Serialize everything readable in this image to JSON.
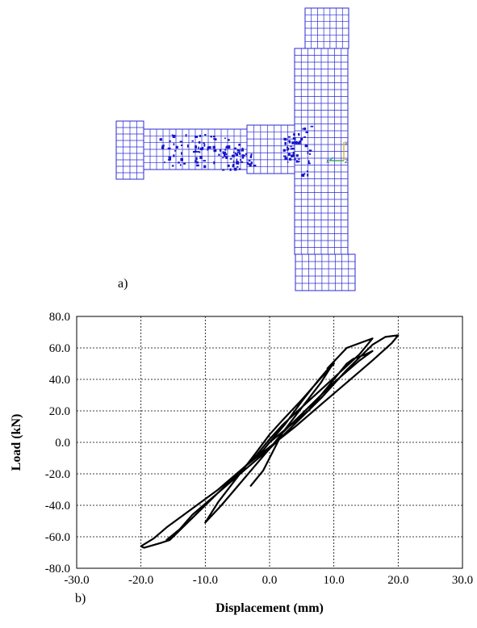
{
  "panels": {
    "a_label": "a)",
    "b_label": "b)"
  },
  "mesh": {
    "grid_color": "#2a2ad6",
    "crack_color": "#1515c8",
    "node_marker_labels": [
      "Y",
      "Z",
      "X"
    ]
  },
  "chart_data": {
    "type": "line",
    "xlabel": "Displacement (mm)",
    "ylabel": "Load (kN)",
    "xlim": [
      -30,
      30
    ],
    "ylim": [
      -80,
      80
    ],
    "x_ticks": [
      -30,
      -20,
      -10,
      0,
      10,
      20,
      30
    ],
    "y_ticks": [
      -80,
      -60,
      -40,
      -20,
      0,
      20,
      40,
      60,
      80
    ],
    "x_tick_labels": [
      "-30.0",
      "-20.0",
      "-10.0",
      "0.0",
      "10.0",
      "20.0",
      "30.0"
    ],
    "y_tick_labels": [
      "-80.0",
      "-60.0",
      "-40.0",
      "-20.0",
      "0.0",
      "20.0",
      "40.0",
      "60.0",
      "80.0"
    ],
    "grid": true,
    "line_color": "#000000",
    "series": [
      {
        "values": [
          [
            0,
            0
          ],
          [
            2.5,
            12
          ],
          [
            5,
            26
          ],
          [
            7.5,
            39
          ],
          [
            10,
            51
          ],
          [
            8,
            38
          ],
          [
            5,
            22
          ],
          [
            2,
            6
          ],
          [
            0,
            -4
          ],
          [
            -2.5,
            -16
          ],
          [
            -5,
            -28
          ],
          [
            -7.5,
            -40
          ],
          [
            -10,
            -51
          ],
          [
            -8,
            -38
          ],
          [
            -5,
            -22
          ],
          [
            -2,
            -6
          ],
          [
            0,
            5
          ],
          [
            2,
            14
          ],
          [
            5,
            27
          ],
          [
            8,
            41
          ],
          [
            10,
            50
          ],
          [
            9,
            47
          ],
          [
            12,
            60
          ],
          [
            14,
            63
          ],
          [
            16,
            66
          ],
          [
            14,
            56
          ],
          [
            10,
            41
          ],
          [
            6,
            26
          ],
          [
            2,
            11
          ],
          [
            0,
            2
          ],
          [
            -2,
            -8
          ],
          [
            -6,
            -24
          ],
          [
            -10,
            -40
          ],
          [
            -13,
            -52
          ],
          [
            -16,
            -62
          ],
          [
            -15,
            -60
          ],
          [
            -12,
            -46
          ],
          [
            -8,
            -32
          ],
          [
            -4,
            -18
          ],
          [
            0,
            -4
          ],
          [
            4,
            12
          ],
          [
            8,
            28
          ],
          [
            12,
            46
          ],
          [
            16,
            62
          ],
          [
            18,
            67
          ],
          [
            20,
            68
          ],
          [
            19,
            63
          ],
          [
            16,
            52
          ],
          [
            12,
            38
          ],
          [
            8,
            24
          ],
          [
            4,
            10
          ],
          [
            0,
            -3
          ],
          [
            -4,
            -16
          ],
          [
            -8,
            -30
          ],
          [
            -12,
            -42
          ],
          [
            -16,
            -54
          ],
          [
            -18,
            -61
          ],
          [
            -20,
            -66
          ],
          [
            -19.5,
            -67
          ],
          [
            -17,
            -64
          ],
          [
            -15.5,
            -62
          ],
          [
            -12,
            -48
          ],
          [
            -8,
            -32
          ],
          [
            -4,
            -16
          ],
          [
            -1,
            -5
          ],
          [
            0,
            0
          ],
          [
            3,
            10
          ],
          [
            6,
            20
          ],
          [
            9,
            35
          ],
          [
            11,
            45
          ],
          [
            12,
            50
          ],
          [
            13,
            53
          ],
          [
            15,
            56
          ],
          [
            16,
            58
          ],
          [
            14,
            52
          ],
          [
            10,
            38
          ],
          [
            6,
            22
          ],
          [
            2,
            6
          ],
          [
            -1,
            -18
          ],
          [
            -3,
            -28
          ]
        ]
      }
    ]
  }
}
